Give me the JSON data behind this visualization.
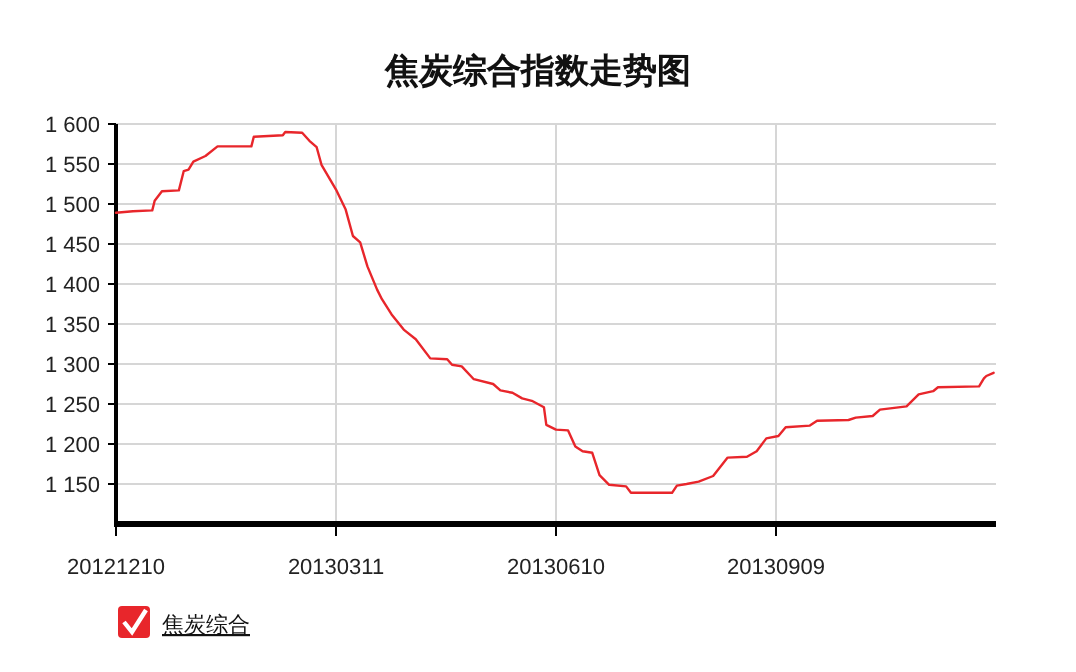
{
  "chart_data": {
    "type": "line",
    "title": "焦炭综合指数走势图",
    "xlim": [
      "2012-12-10",
      "2013-12-09"
    ],
    "xticks": [
      {
        "value": "2012-12-10",
        "label": "20121210"
      },
      {
        "value": "2013-03-11",
        "label": "20130311"
      },
      {
        "value": "2013-06-10",
        "label": "20130610"
      },
      {
        "value": "2013-09-09",
        "label": "20130909"
      }
    ],
    "ylim": [
      1100,
      1600
    ],
    "yticks": [
      {
        "value": 1150,
        "label": "1 150"
      },
      {
        "value": 1200,
        "label": "1 200"
      },
      {
        "value": 1250,
        "label": "1 250"
      },
      {
        "value": 1300,
        "label": "1 300"
      },
      {
        "value": 1350,
        "label": "1 350"
      },
      {
        "value": 1400,
        "label": "1 400"
      },
      {
        "value": 1450,
        "label": "1 450"
      },
      {
        "value": 1500,
        "label": "1 500"
      },
      {
        "value": 1550,
        "label": "1 550"
      },
      {
        "value": 1600,
        "label": "1 600"
      }
    ],
    "grid": true,
    "legend": "bottom left",
    "series": [
      {
        "name": "焦炭综合",
        "color": "#e8262b",
        "x": [
          "2012-12-10",
          "2012-12-17",
          "2012-12-25",
          "2012-12-26",
          "2012-12-29",
          "2013-01-05",
          "2013-01-07",
          "2013-01-09",
          "2013-01-11",
          "2013-01-16",
          "2013-01-21",
          "2013-02-04",
          "2013-02-05",
          "2013-02-17",
          "2013-02-18",
          "2013-02-25",
          "2013-02-28",
          "2013-03-03",
          "2013-03-05",
          "2013-03-11",
          "2013-03-15",
          "2013-03-18",
          "2013-03-21",
          "2013-03-24",
          "2013-03-28",
          "2013-03-30",
          "2013-04-03",
          "2013-04-08",
          "2013-04-13",
          "2013-04-19",
          "2013-04-26",
          "2013-04-28",
          "2013-05-02",
          "2013-05-07",
          "2013-05-15",
          "2013-05-18",
          "2013-05-23",
          "2013-05-27",
          "2013-05-31",
          "2013-06-05",
          "2013-06-06",
          "2013-06-10",
          "2013-06-15",
          "2013-06-18",
          "2013-06-21",
          "2013-06-25",
          "2013-06-28",
          "2013-07-02",
          "2013-07-09",
          "2013-07-11",
          "2013-07-28",
          "2013-07-30",
          "2013-08-03",
          "2013-08-08",
          "2013-08-14",
          "2013-08-20",
          "2013-08-28",
          "2013-09-01",
          "2013-09-05",
          "2013-09-10",
          "2013-09-13",
          "2013-09-23",
          "2013-09-26",
          "2013-10-09",
          "2013-10-12",
          "2013-10-19",
          "2013-10-22",
          "2013-11-02",
          "2013-11-07",
          "2013-11-13",
          "2013-11-15",
          "2013-12-02",
          "2013-12-04",
          "2013-12-05",
          "2013-12-08"
        ],
        "values": [
          1489,
          1491,
          1492,
          1504,
          1516,
          1517,
          1541,
          1543,
          1553,
          1560,
          1572,
          1572,
          1584,
          1586,
          1590,
          1589,
          1579,
          1571,
          1549,
          1518,
          1493,
          1460,
          1452,
          1422,
          1393,
          1381,
          1362,
          1343,
          1331,
          1307,
          1306,
          1299,
          1297,
          1281,
          1275,
          1267,
          1264,
          1257,
          1254,
          1246,
          1224,
          1218,
          1217,
          1197,
          1191,
          1189,
          1161,
          1149,
          1147,
          1139,
          1139,
          1148,
          1150,
          1153,
          1160,
          1183,
          1184,
          1191,
          1207,
          1210,
          1221,
          1223,
          1229,
          1230,
          1233,
          1235,
          1243,
          1247,
          1262,
          1266,
          1271,
          1272,
          1282,
          1285,
          1289
        ]
      }
    ]
  }
}
